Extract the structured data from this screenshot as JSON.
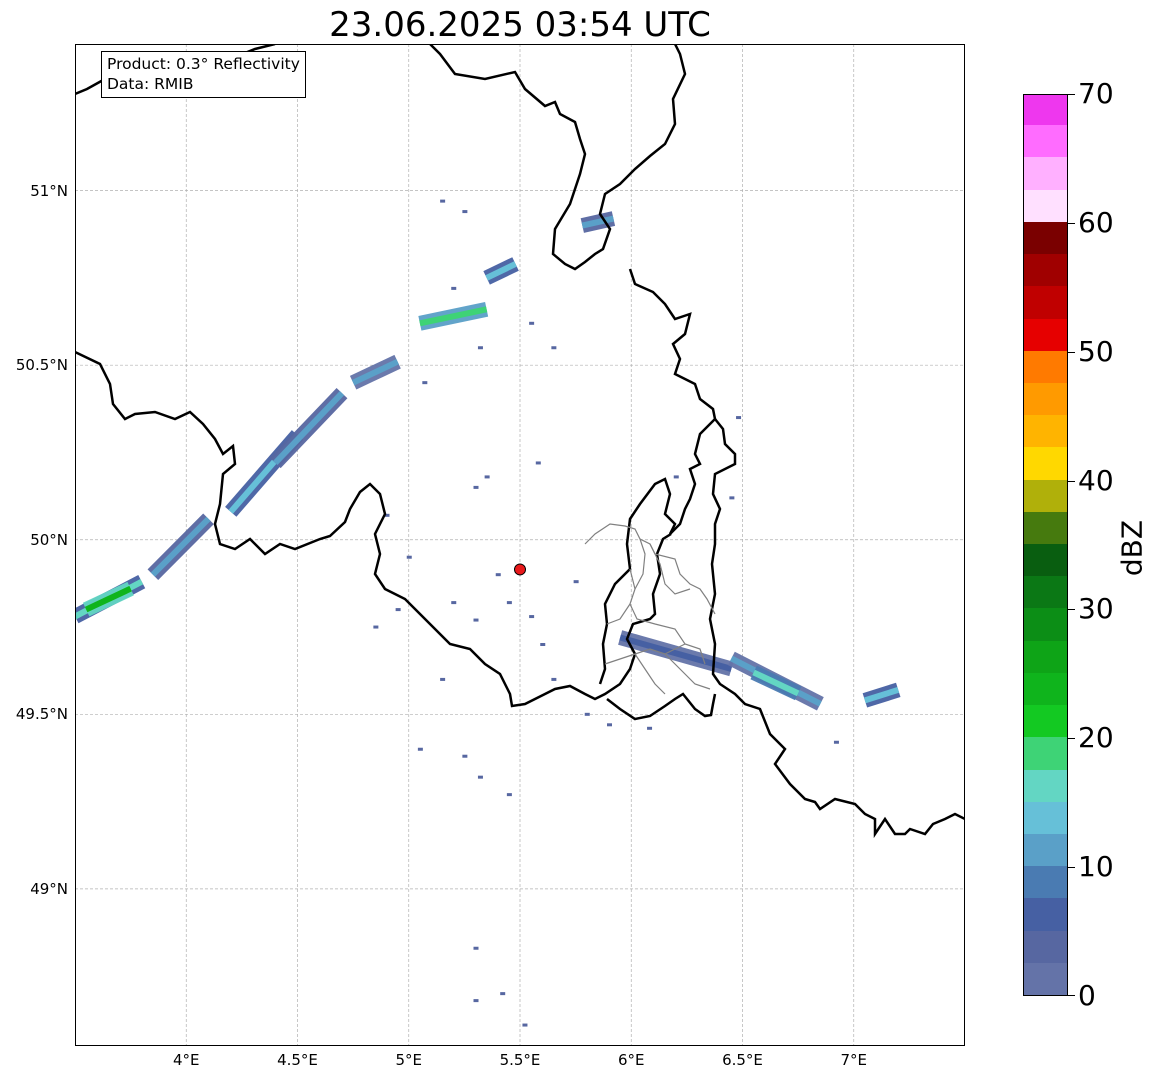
{
  "title": "23.06.2025 03:54 UTC",
  "info_box": {
    "product": "Product: 0.3° Reflectivity",
    "data": "Data: RMIB"
  },
  "map": {
    "lon_range": [
      3.5,
      7.5
    ],
    "lat_range": [
      48.55,
      51.42
    ],
    "grid": true,
    "lat_ticks": [
      {
        "value": 49.0,
        "label": "49°N"
      },
      {
        "value": 49.5,
        "label": "49.5°N"
      },
      {
        "value": 50.0,
        "label": "50°N"
      },
      {
        "value": 50.5,
        "label": "50.5°N"
      },
      {
        "value": 51.0,
        "label": "51°N"
      }
    ],
    "lon_ticks": [
      {
        "value": 4.0,
        "label": "4°E"
      },
      {
        "value": 4.5,
        "label": "4.5°E"
      },
      {
        "value": 5.0,
        "label": "5°E"
      },
      {
        "value": 5.5,
        "label": "5.5°E"
      },
      {
        "value": 6.0,
        "label": "6°E"
      },
      {
        "value": 6.5,
        "label": "6.5°E"
      },
      {
        "value": 7.0,
        "label": "7°E"
      }
    ],
    "radar_site": {
      "lon": 5.5,
      "lat": 49.915,
      "color": "#e8191b"
    },
    "border_color": "#000000",
    "subregion_color": "#808080",
    "echo_bands": [
      {
        "lon_start": 3.5,
        "lat_start": 49.78,
        "lon_end": 3.8,
        "lat_end": 49.88,
        "dbz": 15
      },
      {
        "lon_start": 3.55,
        "lat_start": 49.8,
        "lon_end": 3.75,
        "lat_end": 49.86,
        "dbz": 24
      },
      {
        "lon_start": 3.85,
        "lat_start": 49.9,
        "lon_end": 4.1,
        "lat_end": 50.06,
        "dbz": 12
      },
      {
        "lon_start": 4.2,
        "lat_start": 50.08,
        "lon_end": 4.5,
        "lat_end": 50.3,
        "dbz": 14
      },
      {
        "lon_start": 4.4,
        "lat_start": 50.22,
        "lon_end": 4.7,
        "lat_end": 50.42,
        "dbz": 12
      },
      {
        "lon_start": 4.75,
        "lat_start": 50.45,
        "lon_end": 4.95,
        "lat_end": 50.51,
        "dbz": 10
      },
      {
        "lon_start": 5.05,
        "lat_start": 50.62,
        "lon_end": 5.35,
        "lat_end": 50.66,
        "dbz": 18
      },
      {
        "lon_start": 5.35,
        "lat_start": 50.75,
        "lon_end": 5.48,
        "lat_end": 50.79,
        "dbz": 14
      },
      {
        "lon_start": 5.78,
        "lat_start": 50.9,
        "lon_end": 5.92,
        "lat_end": 50.92,
        "dbz": 12
      },
      {
        "lon_start": 5.95,
        "lat_start": 49.72,
        "lon_end": 6.45,
        "lat_end": 49.63,
        "dbz": 6
      },
      {
        "lon_start": 6.45,
        "lat_start": 49.66,
        "lon_end": 6.85,
        "lat_end": 49.53,
        "dbz": 10
      },
      {
        "lon_start": 6.55,
        "lat_start": 49.62,
        "lon_end": 6.75,
        "lat_end": 49.56,
        "dbz": 17
      },
      {
        "lon_start": 7.05,
        "lat_start": 49.54,
        "lon_end": 7.2,
        "lat_end": 49.57,
        "dbz": 13
      }
    ],
    "speckles": [
      [
        5.15,
        50.97
      ],
      [
        5.25,
        50.94
      ],
      [
        5.32,
        50.55
      ],
      [
        5.55,
        50.62
      ],
      [
        5.65,
        50.55
      ],
      [
        5.2,
        50.72
      ],
      [
        5.07,
        50.45
      ],
      [
        5.35,
        50.18
      ],
      [
        5.58,
        50.22
      ],
      [
        5.3,
        50.15
      ],
      [
        5.0,
        49.95
      ],
      [
        4.95,
        49.8
      ],
      [
        5.2,
        49.82
      ],
      [
        5.3,
        49.77
      ],
      [
        5.55,
        49.78
      ],
      [
        5.75,
        49.88
      ],
      [
        5.65,
        49.6
      ],
      [
        5.8,
        49.5
      ],
      [
        5.6,
        49.7
      ],
      [
        4.9,
        50.07
      ],
      [
        5.4,
        49.9
      ],
      [
        5.45,
        49.82
      ],
      [
        5.15,
        49.6
      ],
      [
        5.05,
        49.4
      ],
      [
        5.25,
        49.38
      ],
      [
        5.32,
        49.32
      ],
      [
        5.45,
        49.27
      ],
      [
        5.3,
        48.83
      ],
      [
        5.42,
        48.7
      ],
      [
        5.3,
        48.68
      ],
      [
        5.52,
        48.61
      ],
      [
        6.2,
        50.18
      ],
      [
        6.45,
        50.12
      ],
      [
        6.48,
        50.35
      ],
      [
        6.92,
        49.42
      ],
      [
        5.9,
        49.47
      ],
      [
        6.08,
        49.46
      ],
      [
        4.85,
        49.75
      ]
    ]
  },
  "colorbar": {
    "label": "dBZ",
    "min": 0,
    "max": 70,
    "step": 2.5,
    "ticks": [
      {
        "value": 0,
        "label": "0"
      },
      {
        "value": 10,
        "label": "10"
      },
      {
        "value": 20,
        "label": "20"
      },
      {
        "value": 30,
        "label": "30"
      },
      {
        "value": 40,
        "label": "40"
      },
      {
        "value": 50,
        "label": "50"
      },
      {
        "value": 60,
        "label": "60"
      },
      {
        "value": 70,
        "label": "70"
      }
    ],
    "colors": [
      "#6473a8",
      "#5767a1",
      "#4660a3",
      "#4a7bb2",
      "#5aa0c8",
      "#66c0d8",
      "#63d6c3",
      "#3ed376",
      "#13c922",
      "#0fb41c",
      "#0ea417",
      "#0c8e16",
      "#0b7815",
      "#095e10",
      "#467a0e",
      "#b0b00a",
      "#ffd800",
      "#ffb400",
      "#ff9a00",
      "#ff7a00",
      "#e60000",
      "#c00000",
      "#a00000",
      "#7a0000",
      "#ffe0ff",
      "#ffb0ff",
      "#ff6cff",
      "#ee37ee"
    ]
  }
}
